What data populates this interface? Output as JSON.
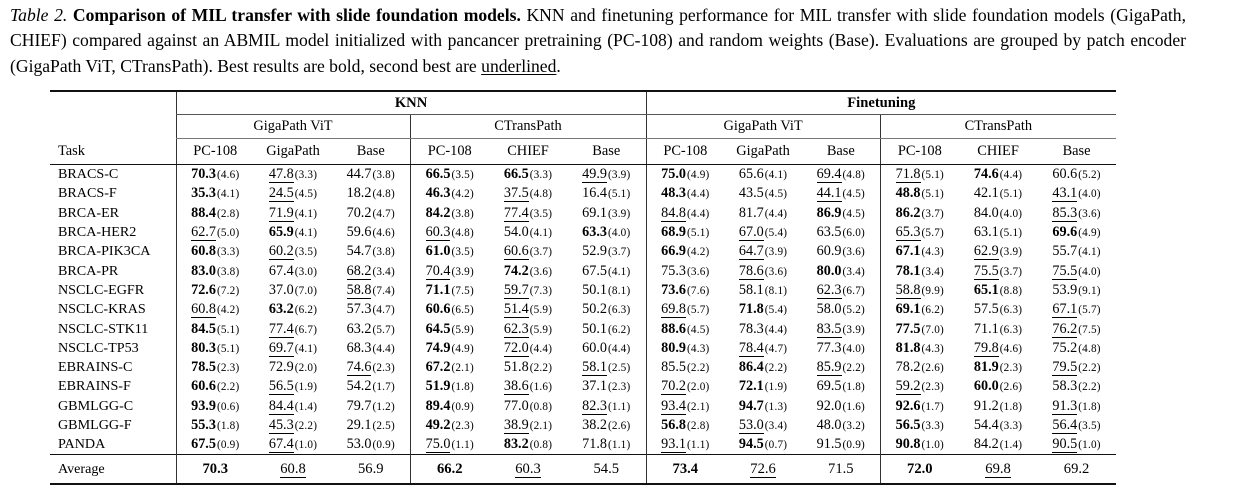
{
  "caption": {
    "label": "Table 2.",
    "title": " Comparison of MIL transfer with slide foundation models.",
    "body": " KNN and finetuning performance for MIL transfer with slide foundation models (GigaPath, CHIEF) compared against an ABMIL model initialized with pancancer pretraining (PC-108) and random weights (Base). Evaluations are grouped by patch encoder (GigaPath ViT, CTransPath). Best results are bold, second best are ",
    "underlined_word": "underlined",
    "suffix": "."
  },
  "table": {
    "corner_label": "Task",
    "group_headers": [
      {
        "label": "KNN"
      },
      {
        "label": "Finetuning"
      }
    ],
    "subgroup_headers": [
      "GigaPath ViT",
      "CTransPath",
      "GigaPath ViT",
      "CTransPath"
    ],
    "column_headers": [
      "PC-108",
      "GigaPath",
      "Base",
      "PC-108",
      "CHIEF",
      "Base",
      "PC-108",
      "GigaPath",
      "Base",
      "PC-108",
      "CHIEF",
      "Base"
    ],
    "format_legend": {
      "b": "bold (best)",
      "u": "underline (second best)",
      "p": "plain"
    },
    "rows": [
      {
        "task": "BRACS-C",
        "cells": [
          [
            "70.3",
            "4.6",
            "b"
          ],
          [
            "47.8",
            "3.3",
            "u"
          ],
          [
            "44.7",
            "3.8",
            "p"
          ],
          [
            "66.5",
            "3.5",
            "b"
          ],
          [
            "66.5",
            "3.3",
            "b"
          ],
          [
            "49.9",
            "3.9",
            "u"
          ],
          [
            "75.0",
            "4.9",
            "b"
          ],
          [
            "65.6",
            "4.1",
            "p"
          ],
          [
            "69.4",
            "4.8",
            "u"
          ],
          [
            "71.8",
            "5.1",
            "u"
          ],
          [
            "74.6",
            "4.4",
            "b"
          ],
          [
            "60.6",
            "5.2",
            "p"
          ]
        ]
      },
      {
        "task": "BRACS-F",
        "cells": [
          [
            "35.3",
            "4.1",
            "b"
          ],
          [
            "24.5",
            "4.5",
            "u"
          ],
          [
            "18.2",
            "4.8",
            "p"
          ],
          [
            "46.3",
            "4.2",
            "b"
          ],
          [
            "37.5",
            "4.8",
            "u"
          ],
          [
            "16.4",
            "5.1",
            "p"
          ],
          [
            "48.3",
            "4.4",
            "b"
          ],
          [
            "43.5",
            "4.5",
            "p"
          ],
          [
            "44.1",
            "4.5",
            "u"
          ],
          [
            "48.8",
            "5.1",
            "b"
          ],
          [
            "42.1",
            "5.1",
            "p"
          ],
          [
            "43.1",
            "4.0",
            "u"
          ]
        ]
      },
      {
        "task": "BRCA-ER",
        "cells": [
          [
            "88.4",
            "2.8",
            "b"
          ],
          [
            "71.9",
            "4.1",
            "u"
          ],
          [
            "70.2",
            "4.7",
            "p"
          ],
          [
            "84.2",
            "3.8",
            "b"
          ],
          [
            "77.4",
            "3.5",
            "u"
          ],
          [
            "69.1",
            "3.9",
            "p"
          ],
          [
            "84.8",
            "4.4",
            "u"
          ],
          [
            "81.7",
            "4.4",
            "p"
          ],
          [
            "86.9",
            "4.5",
            "b"
          ],
          [
            "86.2",
            "3.7",
            "b"
          ],
          [
            "84.0",
            "4.0",
            "p"
          ],
          [
            "85.3",
            "3.6",
            "u"
          ]
        ]
      },
      {
        "task": "BRCA-HER2",
        "cells": [
          [
            "62.7",
            "5.0",
            "u"
          ],
          [
            "65.9",
            "4.1",
            "b"
          ],
          [
            "59.6",
            "4.6",
            "p"
          ],
          [
            "60.3",
            "4.8",
            "u"
          ],
          [
            "54.0",
            "4.1",
            "p"
          ],
          [
            "63.3",
            "4.0",
            "b"
          ],
          [
            "68.9",
            "5.1",
            "b"
          ],
          [
            "67.0",
            "5.4",
            "u"
          ],
          [
            "63.5",
            "6.0",
            "p"
          ],
          [
            "65.3",
            "5.7",
            "u"
          ],
          [
            "63.1",
            "5.1",
            "p"
          ],
          [
            "69.6",
            "4.9",
            "b"
          ]
        ]
      },
      {
        "task": "BRCA-PIK3CA",
        "cells": [
          [
            "60.8",
            "3.3",
            "b"
          ],
          [
            "60.2",
            "3.5",
            "u"
          ],
          [
            "54.7",
            "3.8",
            "p"
          ],
          [
            "61.0",
            "3.5",
            "b"
          ],
          [
            "60.6",
            "3.7",
            "u"
          ],
          [
            "52.9",
            "3.7",
            "p"
          ],
          [
            "66.9",
            "4.2",
            "b"
          ],
          [
            "64.7",
            "3.9",
            "u"
          ],
          [
            "60.9",
            "3.6",
            "p"
          ],
          [
            "67.1",
            "4.3",
            "b"
          ],
          [
            "62.9",
            "3.9",
            "u"
          ],
          [
            "55.7",
            "4.1",
            "p"
          ]
        ]
      },
      {
        "task": "BRCA-PR",
        "cells": [
          [
            "83.0",
            "3.8",
            "b"
          ],
          [
            "67.4",
            "3.0",
            "p"
          ],
          [
            "68.2",
            "3.4",
            "u"
          ],
          [
            "70.4",
            "3.9",
            "u"
          ],
          [
            "74.2",
            "3.6",
            "b"
          ],
          [
            "67.5",
            "4.1",
            "p"
          ],
          [
            "75.3",
            "3.6",
            "p"
          ],
          [
            "78.6",
            "3.6",
            "u"
          ],
          [
            "80.0",
            "3.4",
            "b"
          ],
          [
            "78.1",
            "3.4",
            "b"
          ],
          [
            "75.5",
            "3.7",
            "u"
          ],
          [
            "75.5",
            "4.0",
            "u"
          ]
        ]
      },
      {
        "task": "NSCLC-EGFR",
        "cells": [
          [
            "72.6",
            "7.2",
            "b"
          ],
          [
            "37.0",
            "7.0",
            "p"
          ],
          [
            "58.8",
            "7.4",
            "u"
          ],
          [
            "71.1",
            "7.5",
            "b"
          ],
          [
            "59.7",
            "7.3",
            "u"
          ],
          [
            "50.1",
            "8.1",
            "p"
          ],
          [
            "73.6",
            "7.6",
            "b"
          ],
          [
            "58.1",
            "8.1",
            "p"
          ],
          [
            "62.3",
            "6.7",
            "u"
          ],
          [
            "58.8",
            "9.9",
            "u"
          ],
          [
            "65.1",
            "8.8",
            "b"
          ],
          [
            "53.9",
            "9.1",
            "p"
          ]
        ]
      },
      {
        "task": "NSCLC-KRAS",
        "cells": [
          [
            "60.8",
            "4.2",
            "u"
          ],
          [
            "63.2",
            "6.2",
            "b"
          ],
          [
            "57.3",
            "4.7",
            "p"
          ],
          [
            "60.6",
            "6.5",
            "b"
          ],
          [
            "51.4",
            "5.9",
            "u"
          ],
          [
            "50.2",
            "6.3",
            "p"
          ],
          [
            "69.8",
            "5.7",
            "u"
          ],
          [
            "71.8",
            "5.4",
            "b"
          ],
          [
            "58.0",
            "5.2",
            "p"
          ],
          [
            "69.1",
            "6.2",
            "b"
          ],
          [
            "57.5",
            "6.3",
            "p"
          ],
          [
            "67.1",
            "5.7",
            "u"
          ]
        ]
      },
      {
        "task": "NSCLC-STK11",
        "cells": [
          [
            "84.5",
            "5.1",
            "b"
          ],
          [
            "77.4",
            "6.7",
            "u"
          ],
          [
            "63.2",
            "5.7",
            "p"
          ],
          [
            "64.5",
            "5.9",
            "b"
          ],
          [
            "62.3",
            "5.9",
            "u"
          ],
          [
            "50.1",
            "6.2",
            "p"
          ],
          [
            "88.6",
            "4.5",
            "b"
          ],
          [
            "78.3",
            "4.4",
            "p"
          ],
          [
            "83.5",
            "3.9",
            "u"
          ],
          [
            "77.5",
            "7.0",
            "b"
          ],
          [
            "71.1",
            "6.3",
            "p"
          ],
          [
            "76.2",
            "7.5",
            "u"
          ]
        ]
      },
      {
        "task": "NSCLC-TP53",
        "cells": [
          [
            "80.3",
            "5.1",
            "b"
          ],
          [
            "69.7",
            "4.1",
            "u"
          ],
          [
            "68.3",
            "4.4",
            "p"
          ],
          [
            "74.9",
            "4.9",
            "b"
          ],
          [
            "72.0",
            "4.4",
            "u"
          ],
          [
            "60.0",
            "4.4",
            "p"
          ],
          [
            "80.9",
            "4.3",
            "b"
          ],
          [
            "78.4",
            "4.7",
            "u"
          ],
          [
            "77.3",
            "4.0",
            "p"
          ],
          [
            "81.8",
            "4.3",
            "b"
          ],
          [
            "79.8",
            "4.6",
            "u"
          ],
          [
            "75.2",
            "4.8",
            "p"
          ]
        ]
      },
      {
        "task": "EBRAINS-C",
        "cells": [
          [
            "78.5",
            "2.3",
            "b"
          ],
          [
            "72.9",
            "2.0",
            "p"
          ],
          [
            "74.6",
            "2.3",
            "u"
          ],
          [
            "67.2",
            "2.1",
            "b"
          ],
          [
            "51.8",
            "2.2",
            "p"
          ],
          [
            "58.1",
            "2.5",
            "u"
          ],
          [
            "85.5",
            "2.2",
            "p"
          ],
          [
            "86.4",
            "2.2",
            "b"
          ],
          [
            "85.9",
            "2.2",
            "u"
          ],
          [
            "78.2",
            "2.6",
            "p"
          ],
          [
            "81.9",
            "2.3",
            "b"
          ],
          [
            "79.5",
            "2.2",
            "u"
          ]
        ]
      },
      {
        "task": "EBRAINS-F",
        "cells": [
          [
            "60.6",
            "2.2",
            "b"
          ],
          [
            "56.5",
            "1.9",
            "u"
          ],
          [
            "54.2",
            "1.7",
            "p"
          ],
          [
            "51.9",
            "1.8",
            "b"
          ],
          [
            "38.6",
            "1.6",
            "u"
          ],
          [
            "37.1",
            "2.3",
            "p"
          ],
          [
            "70.2",
            "2.0",
            "u"
          ],
          [
            "72.1",
            "1.9",
            "b"
          ],
          [
            "69.5",
            "1.8",
            "p"
          ],
          [
            "59.2",
            "2.3",
            "u"
          ],
          [
            "60.0",
            "2.6",
            "b"
          ],
          [
            "58.3",
            "2.2",
            "p"
          ]
        ]
      },
      {
        "task": "GBMLGG-C",
        "cells": [
          [
            "93.9",
            "0.6",
            "b"
          ],
          [
            "84.4",
            "1.4",
            "u"
          ],
          [
            "79.7",
            "1.2",
            "p"
          ],
          [
            "89.4",
            "0.9",
            "b"
          ],
          [
            "77.0",
            "0.8",
            "p"
          ],
          [
            "82.3",
            "1.1",
            "u"
          ],
          [
            "93.4",
            "2.1",
            "u"
          ],
          [
            "94.7",
            "1.3",
            "b"
          ],
          [
            "92.0",
            "1.6",
            "p"
          ],
          [
            "92.6",
            "1.7",
            "b"
          ],
          [
            "91.2",
            "1.8",
            "p"
          ],
          [
            "91.3",
            "1.8",
            "u"
          ]
        ]
      },
      {
        "task": "GBMLGG-F",
        "cells": [
          [
            "55.3",
            "1.8",
            "b"
          ],
          [
            "45.3",
            "2.2",
            "u"
          ],
          [
            "29.1",
            "2.5",
            "p"
          ],
          [
            "49.2",
            "2.3",
            "b"
          ],
          [
            "38.9",
            "2.1",
            "u"
          ],
          [
            "38.2",
            "2.6",
            "p"
          ],
          [
            "56.8",
            "2.8",
            "b"
          ],
          [
            "53.0",
            "3.4",
            "u"
          ],
          [
            "48.0",
            "3.2",
            "p"
          ],
          [
            "56.5",
            "3.3",
            "b"
          ],
          [
            "54.4",
            "3.3",
            "p"
          ],
          [
            "56.4",
            "3.5",
            "u"
          ]
        ]
      },
      {
        "task": "PANDA",
        "cells": [
          [
            "67.5",
            "0.9",
            "b"
          ],
          [
            "67.4",
            "1.0",
            "u"
          ],
          [
            "53.0",
            "0.9",
            "p"
          ],
          [
            "75.0",
            "1.1",
            "u"
          ],
          [
            "83.2",
            "0.8",
            "b"
          ],
          [
            "71.8",
            "1.1",
            "p"
          ],
          [
            "93.1",
            "1.1",
            "u"
          ],
          [
            "94.5",
            "0.7",
            "b"
          ],
          [
            "91.5",
            "0.9",
            "p"
          ],
          [
            "90.8",
            "1.0",
            "b"
          ],
          [
            "84.2",
            "1.4",
            "p"
          ],
          [
            "90.5",
            "1.0",
            "u"
          ]
        ]
      }
    ],
    "average_row": {
      "task": "Average",
      "cells": [
        [
          "70.3",
          "",
          "b"
        ],
        [
          "60.8",
          "",
          "u"
        ],
        [
          "56.9",
          "",
          "p"
        ],
        [
          "66.2",
          "",
          "b"
        ],
        [
          "60.3",
          "",
          "u"
        ],
        [
          "54.5",
          "",
          "p"
        ],
        [
          "73.4",
          "",
          "b"
        ],
        [
          "72.6",
          "",
          "u"
        ],
        [
          "71.5",
          "",
          "p"
        ],
        [
          "72.0",
          "",
          "b"
        ],
        [
          "69.8",
          "",
          "u"
        ],
        [
          "69.2",
          "",
          "p"
        ]
      ]
    }
  }
}
